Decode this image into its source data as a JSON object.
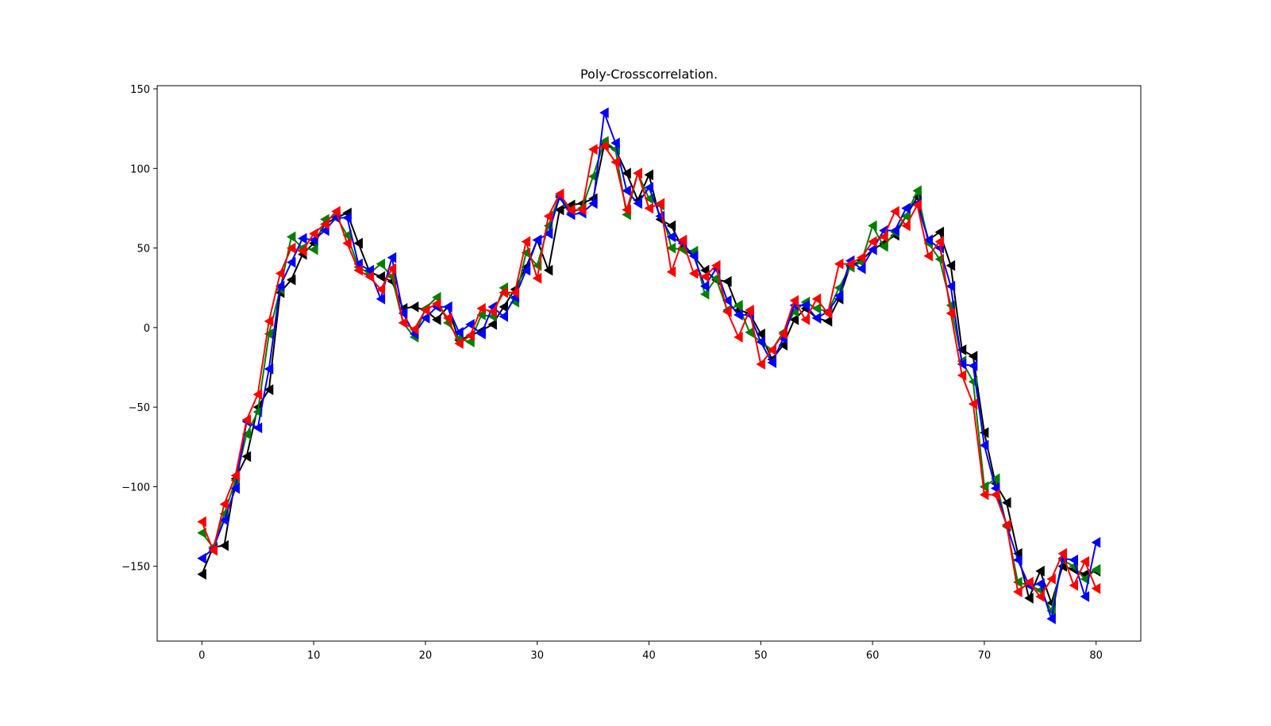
{
  "chart_data": {
    "type": "line",
    "title": "Poly-Crosscorrelation.",
    "xlabel": "",
    "ylabel": "",
    "xlim": [
      -4,
      84
    ],
    "ylim": [
      -197,
      152
    ],
    "xticks": [
      0,
      10,
      20,
      30,
      40,
      50,
      60,
      70,
      80
    ],
    "yticks": [
      -150,
      -100,
      -50,
      0,
      50,
      100,
      150
    ],
    "xtick_labels": [
      "0",
      "10",
      "20",
      "30",
      "40",
      "50",
      "60",
      "70",
      "80"
    ],
    "ytick_labels": [
      "−150",
      "−100",
      "−50",
      "0",
      "50",
      "100",
      "150"
    ],
    "grid": false,
    "legend": "none",
    "marker": "left-pointing triangle",
    "x": [
      0,
      1,
      2,
      3,
      4,
      5,
      6,
      7,
      8,
      9,
      10,
      11,
      12,
      13,
      14,
      15,
      16,
      17,
      18,
      19,
      20,
      21,
      22,
      23,
      24,
      25,
      26,
      27,
      28,
      29,
      30,
      31,
      32,
      33,
      34,
      35,
      36,
      37,
      38,
      39,
      40,
      41,
      42,
      43,
      44,
      45,
      46,
      47,
      48,
      49,
      50,
      51,
      52,
      53,
      54,
      55,
      56,
      57,
      58,
      59,
      60,
      61,
      62,
      63,
      64,
      65,
      66,
      67,
      68,
      69,
      70,
      71,
      72,
      73,
      74,
      75,
      76,
      77,
      78,
      79,
      80
    ],
    "series": [
      {
        "color": "#000000",
        "values": [
          -155,
          -138,
          -137,
          -95,
          -81,
          -50,
          -39,
          22,
          30,
          46,
          53,
          65,
          69,
          72,
          53,
          35,
          32,
          29,
          12,
          13,
          11,
          5,
          13,
          -8,
          -5,
          -2,
          2,
          13,
          24,
          38,
          55,
          36,
          74,
          77,
          78,
          81,
          115,
          112,
          97,
          80,
          96,
          68,
          64,
          50,
          45,
          36,
          30,
          29,
          11,
          9,
          -4,
          -20,
          -11,
          5,
          12,
          6,
          4,
          18,
          39,
          42,
          49,
          53,
          58,
          70,
          82,
          55,
          60,
          39,
          -14,
          -18,
          -66,
          -98,
          -110,
          -142,
          -170,
          -153,
          -173,
          -150,
          -152,
          -155,
          -153
        ]
      },
      {
        "color": "#008000",
        "values": [
          -129,
          -138,
          -117,
          -96,
          -67,
          -53,
          -4,
          24,
          57,
          50,
          49,
          68,
          70,
          58,
          38,
          34,
          40,
          32,
          3,
          -6,
          12,
          19,
          3,
          -7,
          -9,
          8,
          7,
          25,
          16,
          47,
          39,
          64,
          83,
          72,
          75,
          95,
          117,
          112,
          71,
          97,
          81,
          77,
          50,
          49,
          48,
          21,
          31,
          11,
          14,
          -3,
          -9,
          -14,
          -3,
          10,
          16,
          12,
          10,
          25,
          38,
          41,
          64,
          51,
          60,
          70,
          86,
          53,
          43,
          14,
          -21,
          -34,
          -100,
          -95,
          -125,
          -160,
          -162,
          -165,
          -178,
          -146,
          -150,
          -158,
          -152
        ]
      },
      {
        "color": "#0000ff",
        "values": [
          -145,
          -139,
          -121,
          -101,
          -59,
          -63,
          -26,
          26,
          41,
          56,
          55,
          61,
          69,
          69,
          40,
          36,
          18,
          44,
          9,
          -4,
          6,
          13,
          13,
          -3,
          2,
          -4,
          13,
          7,
          19,
          36,
          55,
          59,
          82,
          71,
          72,
          78,
          135,
          116,
          86,
          78,
          88,
          70,
          57,
          53,
          45,
          26,
          37,
          17,
          8,
          8,
          -9,
          -22,
          -7,
          14,
          14,
          6,
          10,
          20,
          42,
          37,
          49,
          61,
          61,
          75,
          78,
          55,
          50,
          26,
          -23,
          -24,
          -74,
          -101,
          -124,
          -146,
          -162,
          -161,
          -183,
          -145,
          -146,
          -169,
          -135
        ]
      },
      {
        "color": "#ff0000",
        "values": [
          -122,
          -140,
          -111,
          -93,
          -58,
          -42,
          4,
          34,
          50,
          48,
          59,
          65,
          73,
          53,
          36,
          32,
          24,
          37,
          3,
          -1,
          11,
          15,
          6,
          -10,
          -5,
          12,
          10,
          22,
          22,
          54,
          31,
          70,
          84,
          74,
          74,
          112,
          114,
          104,
          74,
          97,
          75,
          78,
          35,
          55,
          34,
          32,
          39,
          10,
          -6,
          11,
          -23,
          -14,
          -4,
          17,
          5,
          18,
          9,
          40,
          40,
          44,
          54,
          57,
          73,
          64,
          77,
          45,
          54,
          9,
          -30,
          -48,
          -105,
          -105,
          -124,
          -166,
          -160,
          -169,
          -158,
          -142,
          -162,
          -147,
          -164
        ]
      }
    ]
  }
}
